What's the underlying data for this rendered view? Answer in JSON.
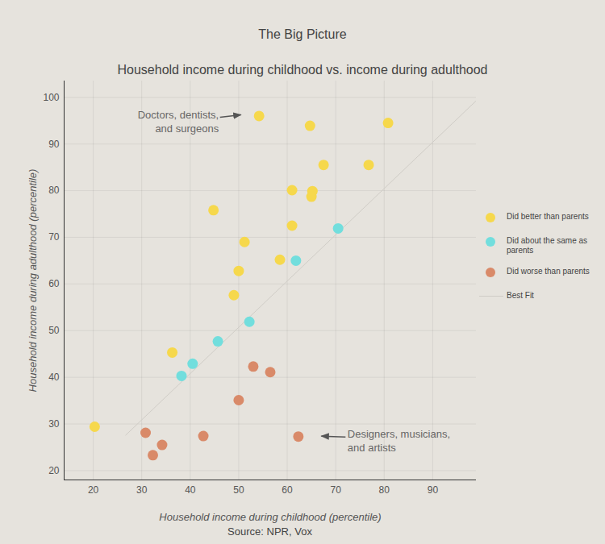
{
  "chart_data": {
    "type": "scatter",
    "title": "The Big Picture",
    "subtitle": "Household income during childhood vs. income during adulthood",
    "x_label": "Household income during childhood (percentile)",
    "y_label": "Household income during adulthood (percentile)",
    "caption": "Source: NPR, Vox",
    "xlim": [
      14,
      99
    ],
    "ylim": [
      18,
      103.5
    ],
    "xticks": [
      20,
      30,
      40,
      50,
      60,
      70,
      80,
      90
    ],
    "yticks": [
      20,
      30,
      40,
      50,
      60,
      70,
      80,
      90,
      100
    ],
    "grid": true,
    "legend": "right",
    "series": [
      {
        "name": "Did better than parents",
        "color": "#f6d84c",
        "type": "scatter",
        "marker": "circle",
        "x": [
          54.2,
          64.7,
          80.8,
          67.5,
          76.8,
          61,
          65.2,
          65,
          44.8,
          61,
          51.2,
          58.5,
          50,
          49,
          36.3,
          20.3
        ],
        "values": [
          96.0,
          93.9,
          94.5,
          85.5,
          85.5,
          80.1,
          79.9,
          78.7,
          75.8,
          72.5,
          69.0,
          65.2,
          62.8,
          57.6,
          45.3,
          29.4
        ]
      },
      {
        "name": "Did about the same as parents",
        "color": "#72dedd",
        "type": "scatter",
        "marker": "circle",
        "x": [
          70.5,
          61.8,
          52.2,
          45.7,
          40.5,
          38.2
        ],
        "values": [
          71.9,
          65.0,
          51.9,
          47.7,
          42.9,
          40.3
        ]
      },
      {
        "name": "Did worse than parents",
        "color": "#d98a69",
        "type": "scatter",
        "marker": "circle",
        "x": [
          53,
          56.5,
          50,
          30.8,
          34.2,
          42.7,
          62.3,
          32.3
        ],
        "values": [
          42.3,
          41.1,
          35.1,
          28.1,
          25.5,
          27.4,
          27.3,
          23.3
        ]
      },
      {
        "name": "Best Fit",
        "color": "#cfccc6",
        "type": "line",
        "line_style": "solid",
        "x": [
          26.7,
          99
        ],
        "values": [
          27.6,
          99.3
        ]
      }
    ],
    "annotations": [
      {
        "text": "Doctors, dentists,\nand surgeons",
        "x": 54.2,
        "y": 96.0
      },
      {
        "text": "Designers, musicians,\nand artists",
        "x": 62.3,
        "y": 27.3
      }
    ]
  }
}
